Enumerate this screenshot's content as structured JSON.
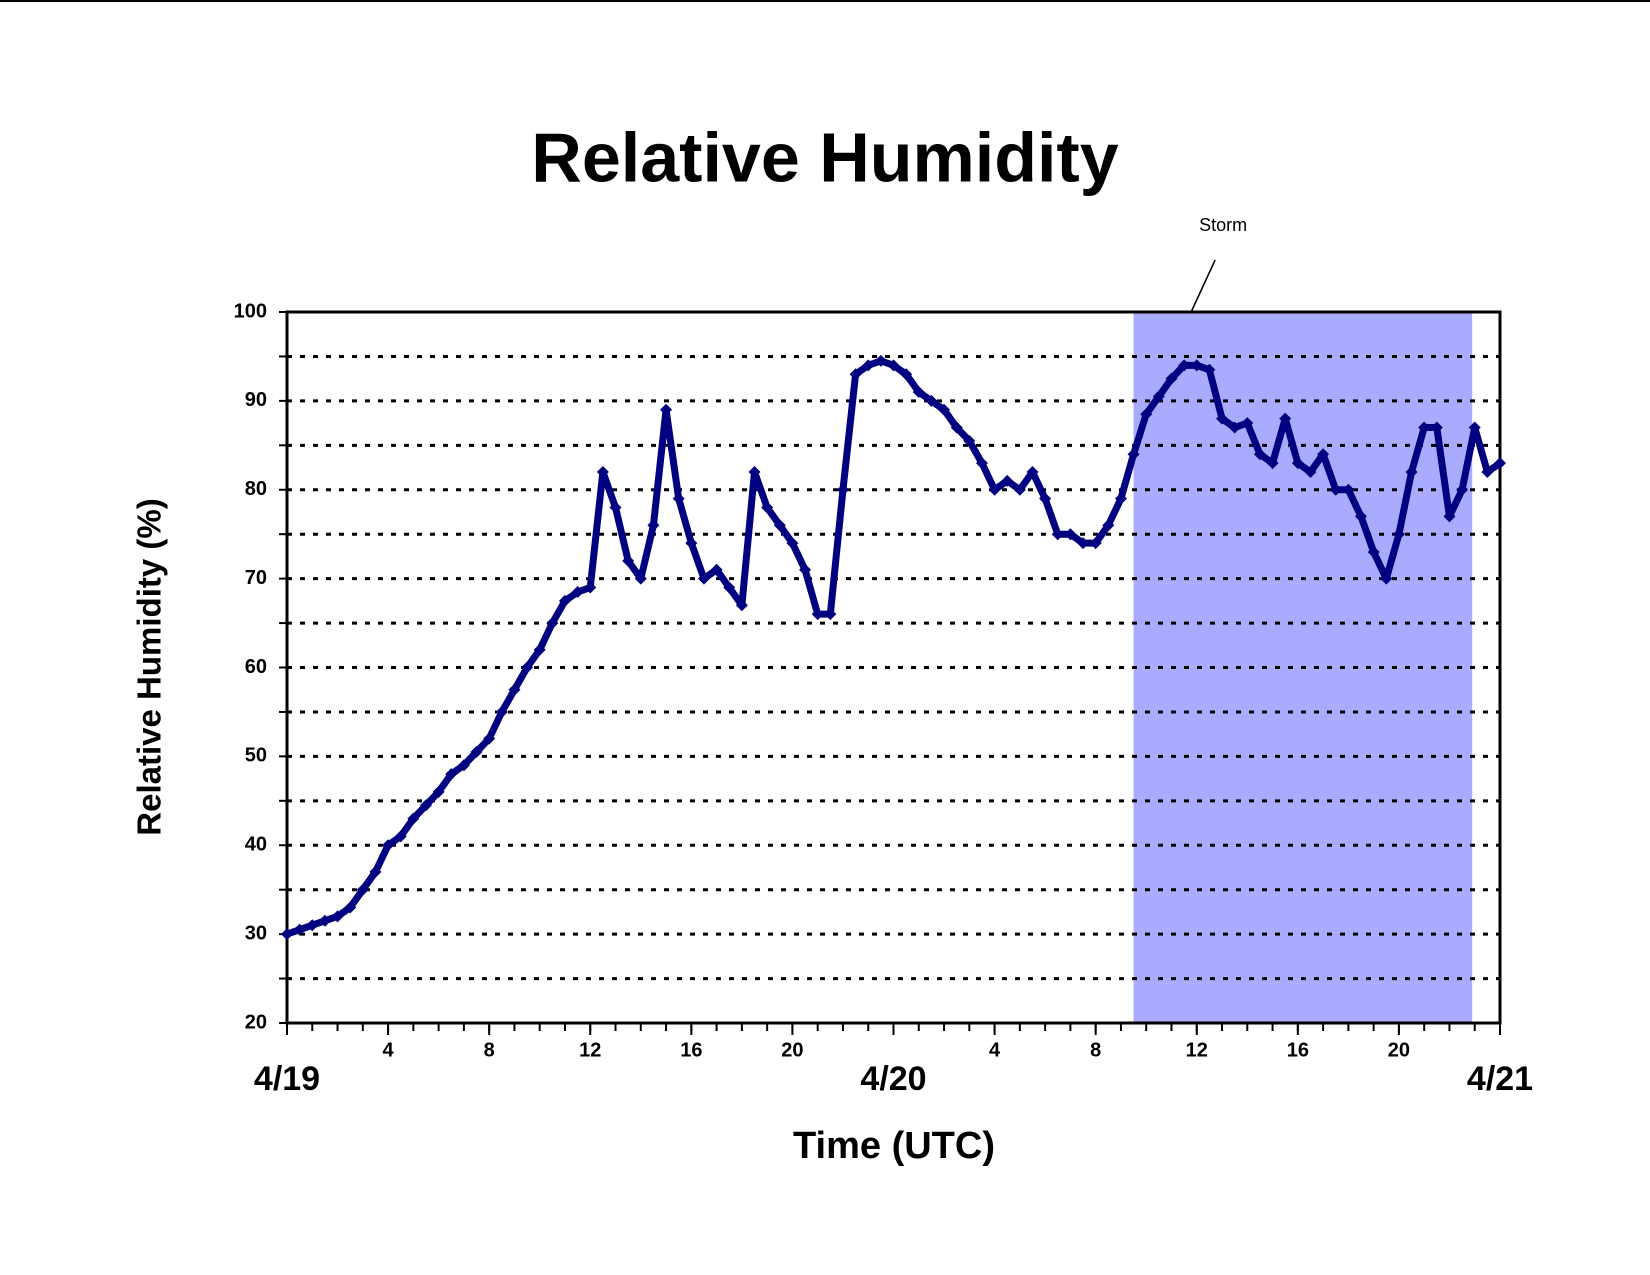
{
  "chart_data": {
    "type": "scatter",
    "title": "Relative Humidity",
    "x_label": "Time (UTC)",
    "y_label": "Relative Humidity (%)",
    "xlim": [
      0,
      48
    ],
    "ylim": [
      20,
      100
    ],
    "yticks": [
      20,
      30,
      40,
      50,
      60,
      70,
      80,
      90,
      100
    ],
    "minor_yticks": [
      25,
      35,
      45,
      55,
      65,
      75,
      85,
      95
    ],
    "xticks": [
      4,
      8,
      12,
      16,
      20,
      {
        "value": 28,
        "label": "4"
      },
      {
        "value": 32,
        "label": "8"
      },
      {
        "value": 36,
        "label": "12"
      },
      {
        "value": 40,
        "label": "16"
      },
      {
        "value": 44,
        "label": "20"
      }
    ],
    "day_ticks": [
      {
        "value": 0,
        "label": "4/19"
      },
      {
        "value": 24,
        "label": "4/20"
      },
      {
        "value": 48,
        "label": "4/21"
      }
    ],
    "minor_xtick_step": 1,
    "grid": true,
    "highlight": {
      "xlim": [
        33.5,
        46.9
      ],
      "color": "#aaaaff",
      "label": "Storm"
    },
    "series": [
      {
        "color": "#000080",
        "x": [
          0,
          0.5,
          1,
          1.5,
          2,
          2.5,
          3,
          3.5,
          4,
          4.5,
          5,
          5.5,
          6,
          6.5,
          7,
          7.5,
          8,
          8.5,
          9,
          9.5,
          10,
          10.5,
          11,
          11.5,
          12,
          12.5,
          13,
          13.5,
          14,
          14.5,
          15,
          15.5,
          16,
          16.5,
          17,
          17.5,
          18,
          18.5,
          19,
          19.5,
          20,
          20.5,
          21,
          21.5,
          22,
          22.5,
          23,
          23.5,
          24,
          24.5,
          25,
          25.5,
          26,
          26.5,
          27,
          27.5,
          28,
          28.5,
          29,
          29.5,
          30,
          30.5,
          31,
          31.5,
          32,
          32.5,
          33,
          33.5,
          34,
          34.5,
          35,
          35.5,
          36,
          36.5,
          37,
          37.5,
          38,
          38.5,
          39,
          39.5,
          40,
          40.5,
          41,
          41.5,
          42,
          42.5,
          43,
          43.5,
          44,
          44.5,
          45,
          45.5,
          46,
          46.5,
          47,
          47.5,
          48
        ],
        "values": [
          30,
          30.5,
          31,
          31.5,
          32,
          33,
          35,
          37,
          40,
          41,
          43,
          44.5,
          46,
          48,
          49,
          50.5,
          52,
          55,
          57.5,
          60,
          62,
          65,
          67.5,
          68.5,
          69,
          82,
          78,
          72,
          70,
          76,
          89,
          79,
          74,
          70,
          71,
          69,
          67,
          82,
          78,
          76,
          74,
          71,
          66,
          66,
          80,
          93,
          94,
          94.5,
          94,
          93,
          91,
          90,
          89,
          87,
          85.5,
          83,
          80,
          81,
          80,
          82,
          79,
          75,
          75,
          74,
          74,
          76,
          79,
          84,
          88.5,
          90.5,
          92.5,
          94,
          94,
          93.5,
          88,
          87,
          87.5,
          84,
          83,
          88,
          83,
          82,
          84,
          80,
          80,
          77,
          73,
          70,
          75,
          82,
          87,
          87,
          77,
          80,
          87,
          82,
          83
        ]
      }
    ]
  }
}
